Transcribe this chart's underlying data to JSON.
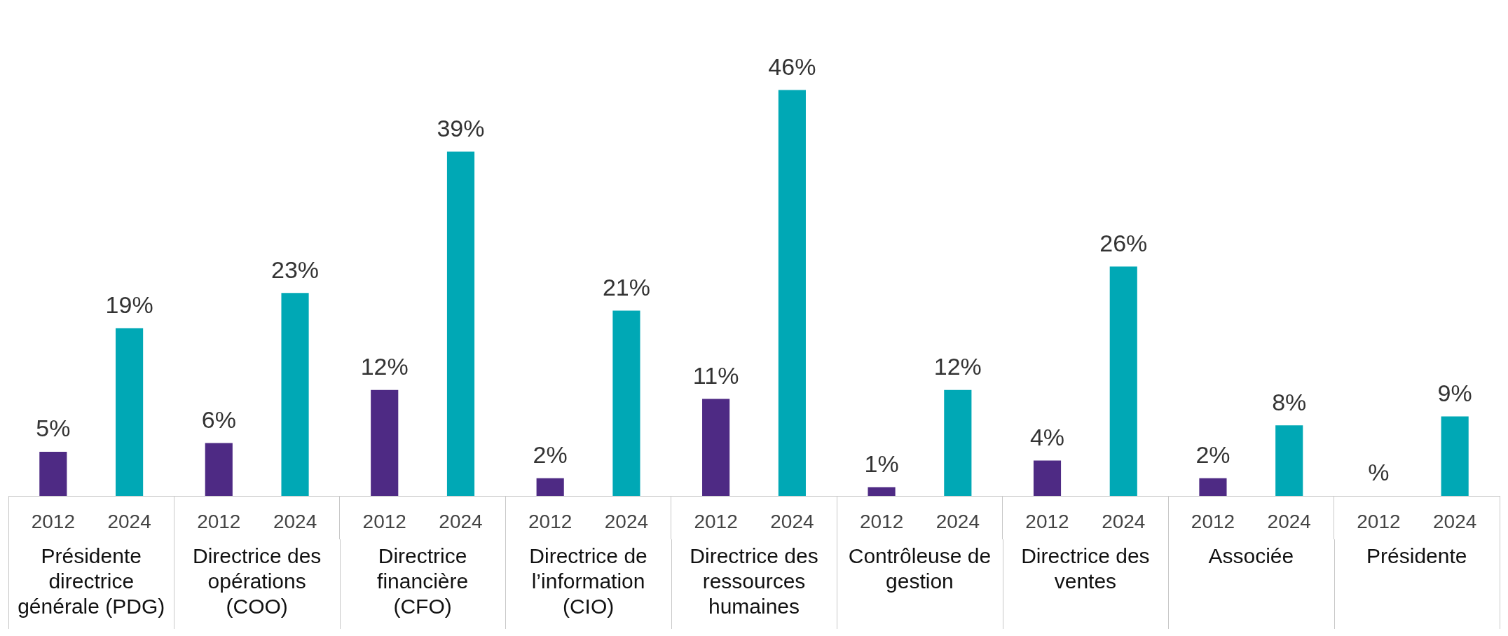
{
  "chart_data": {
    "type": "bar",
    "categories": [
      "Présidente directrice générale (PDG)",
      "Directrice des opérations (COO)",
      "Directrice financière (CFO)",
      "Directrice de l’information (CIO)",
      "Directrice des ressources humaines",
      "Contrôleuse de gestion",
      "Directrice des ventes",
      "Associée",
      "Présidente"
    ],
    "series": [
      {
        "name": "2012",
        "color": "#4e2a84",
        "values": [
          5,
          6,
          12,
          2,
          11,
          1,
          4,
          2,
          null
        ],
        "value_labels": [
          "5%",
          "6%",
          "12%",
          "2%",
          "11%",
          "1%",
          "4%",
          "2%",
          "%"
        ]
      },
      {
        "name": "2024",
        "color": "#00a8b5",
        "values": [
          19,
          23,
          39,
          21,
          46,
          12,
          26,
          8,
          9
        ],
        "value_labels": [
          "19%",
          "23%",
          "39%",
          "21%",
          "46%",
          "12%",
          "26%",
          "8%",
          "9%"
        ]
      }
    ],
    "legend": false
  }
}
